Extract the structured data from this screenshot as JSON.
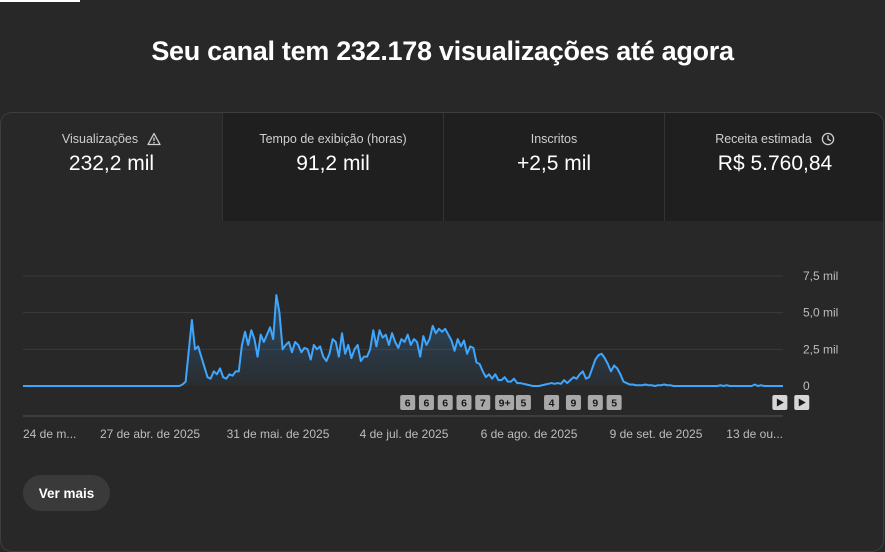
{
  "headline": "Seu canal tem 232.178 visualizações até agora",
  "metrics": [
    {
      "label": "Visualizações",
      "value": "232,2 mil",
      "icon": "warning-icon",
      "active": true
    },
    {
      "label": "Tempo de exibição (horas)",
      "value": "91,2 mil",
      "icon": "",
      "active": false
    },
    {
      "label": "Inscritos",
      "value": "+2,5 mil",
      "icon": "",
      "active": false
    },
    {
      "label": "Receita estimada",
      "value": "R$ 5.760,84",
      "icon": "clock-icon",
      "active": false
    }
  ],
  "chart_data": {
    "type": "area",
    "series": [
      {
        "values": [
          0,
          0,
          0,
          0,
          0,
          0,
          0,
          0,
          0,
          0,
          0,
          0,
          0,
          0,
          0,
          0,
          0,
          0,
          0,
          0,
          0,
          0,
          0,
          0,
          0,
          0,
          0,
          0,
          0,
          0,
          0,
          0,
          0,
          0,
          0,
          0,
          0,
          0,
          0,
          0,
          0,
          0,
          0,
          0,
          0,
          0,
          0,
          0,
          0,
          0,
          0,
          0.1,
          0.3,
          2.4,
          4.5,
          2.5,
          2.7,
          2,
          1.3,
          0.6,
          0.5,
          1,
          0.8,
          1.2,
          0.6,
          0.5,
          0.8,
          0.7,
          1,
          1,
          2.8,
          3.7,
          2.8,
          3.8,
          3.2,
          2,
          3.5,
          3,
          3.5,
          4,
          3.2,
          6.2,
          5,
          2.5,
          2.8,
          3,
          2.3,
          3,
          2.8,
          2.3,
          2.6,
          2.5,
          1.8,
          2.8,
          2.5,
          2.7,
          2,
          1.7,
          2.2,
          3.2,
          3,
          2,
          3.6,
          2.2,
          2.8,
          1.9,
          2.5,
          2.8,
          1.7,
          2,
          2,
          2.5,
          3.8,
          2.7,
          3.8,
          3.3,
          3.5,
          2.8,
          3.6,
          3,
          2.6,
          3.2,
          3,
          3.5,
          2.8,
          3.2,
          3,
          2,
          3.4,
          2.8,
          3.2,
          4.1,
          3.6,
          3.9,
          3.7,
          3.9,
          3.5,
          3.1,
          2.4,
          3.2,
          2.7,
          3.1,
          2.2,
          2.7,
          2.6,
          1.6,
          1.5,
          1,
          0.6,
          0.8,
          0.5,
          0.8,
          0.4,
          0.4,
          0.6,
          0.3,
          0.3,
          0.5,
          0.2,
          0.2,
          0.15,
          0.1,
          0.05,
          0,
          0,
          0,
          0.05,
          0.1,
          0.15,
          0.2,
          0.15,
          0.2,
          0.15,
          0.4,
          0.2,
          0.4,
          0.6,
          0.5,
          0.8,
          1,
          0.5,
          0.6,
          1.2,
          1.8,
          2.1,
          2.2,
          1.9,
          1.5,
          1,
          1.4,
          1.2,
          0.8,
          0.3,
          0.2,
          0.1,
          0.1,
          0.05,
          0.05,
          0.05,
          0.1,
          0.05,
          0.05,
          0,
          0.05,
          0.05,
          0.1,
          0.05,
          0.05,
          0,
          0,
          0,
          0,
          0,
          0,
          0,
          0,
          0,
          0,
          0,
          0,
          0,
          0,
          0,
          0.05,
          0,
          0.05,
          0,
          0,
          0,
          0,
          0,
          0,
          0,
          0,
          0.1,
          0,
          0.05,
          0,
          0,
          0,
          0,
          0,
          0,
          0
        ]
      }
    ],
    "ylim": [
      0,
      7500
    ],
    "yticks": [
      "0",
      "2,5 mil",
      "5,0 mil",
      "7,5 mil"
    ],
    "ytick_values": [
      0,
      2500,
      5000,
      7500
    ],
    "xtick_labels": [
      "24 de m...",
      "27 de abr. de 2025",
      "31 de mai. de 2025",
      "4 de jul. de 2025",
      "6 de ago. de 2025",
      "9 de set. de 2025",
      "13 de ou..."
    ],
    "markers": [
      "6",
      "6",
      "6",
      "6",
      "7",
      "9+",
      "5",
      "4",
      "9",
      "9",
      "5"
    ],
    "marker_index": [
      123,
      129,
      135,
      141,
      147,
      154,
      160,
      169,
      176,
      183,
      189
    ],
    "nav_markers": [
      "play-icon",
      "play-icon"
    ],
    "nav_marker_index": [
      242,
      249
    ],
    "grid": true,
    "line_color": "#3ea6ff"
  },
  "more_button_label": "Ver mais"
}
